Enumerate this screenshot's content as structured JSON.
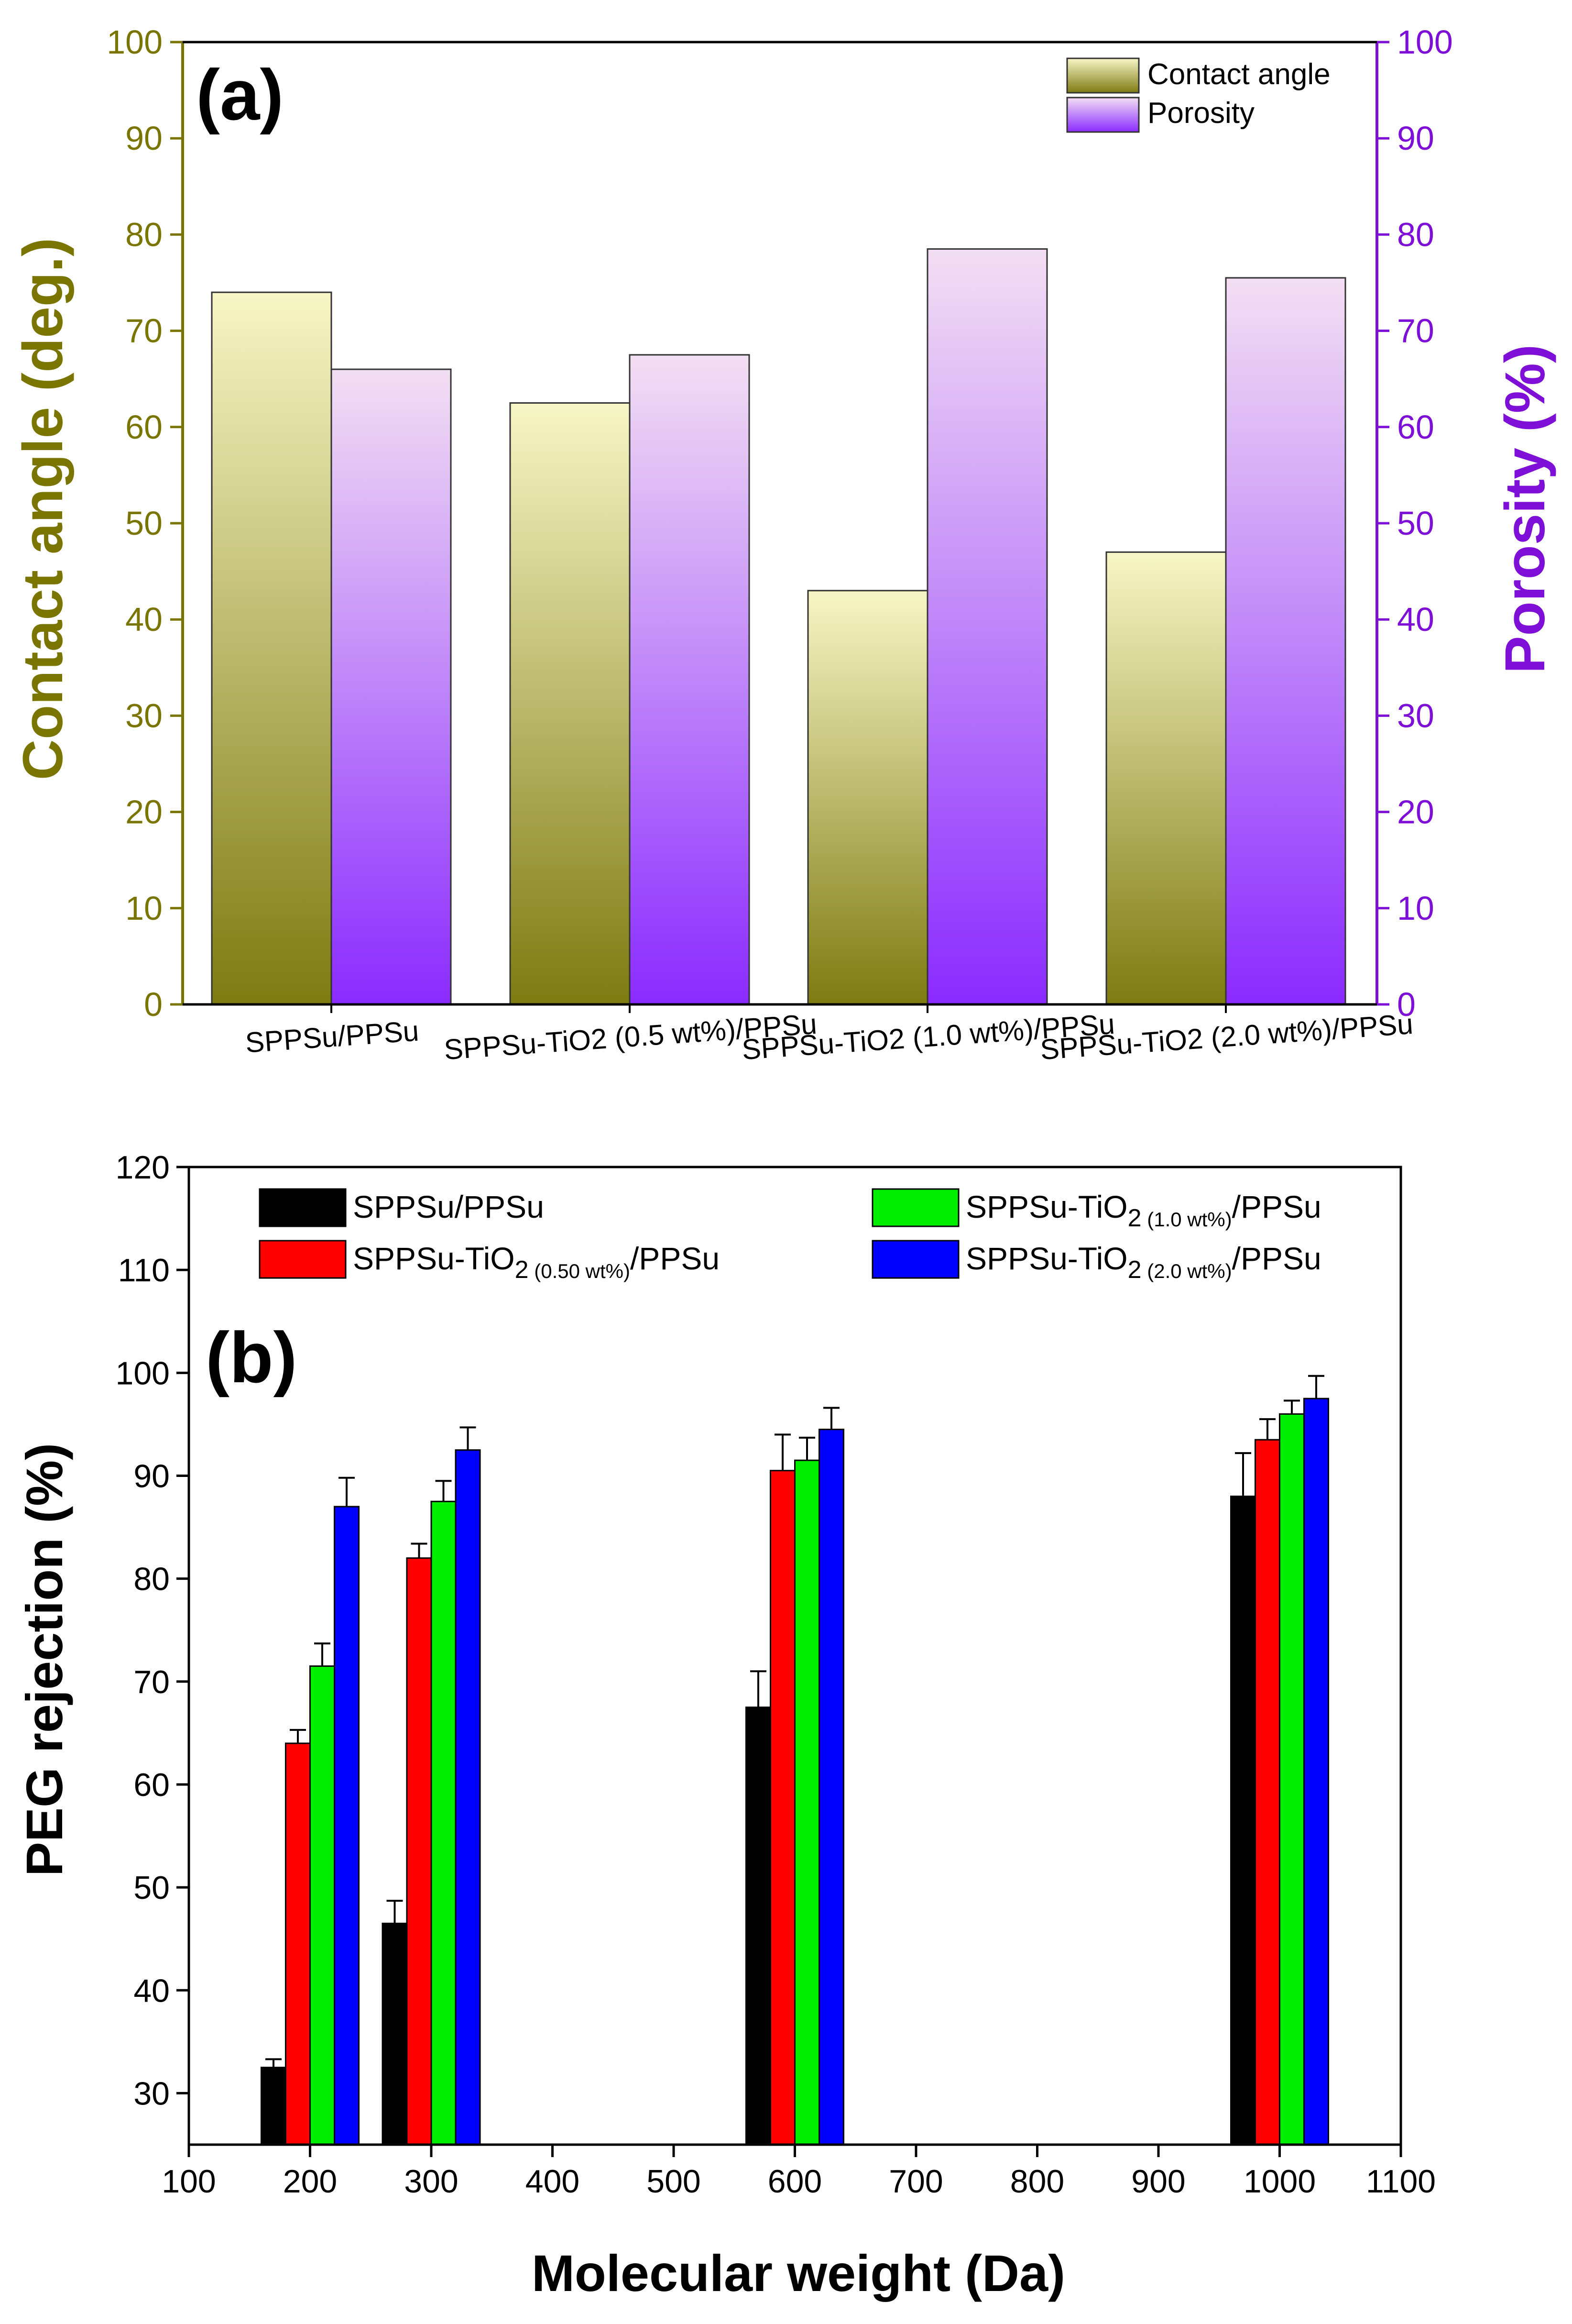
{
  "chart_data": [
    {
      "panel_label": "(a)",
      "type": "bar",
      "categories": [
        "SPPSu/PPSu",
        "SPPSu-TiO2 (0.5 wt%)/PPSu",
        "SPPSu-TiO2 (1.0 wt%)/PPSu",
        "SPPSu-TiO2 (2.0 wt%)/PPSu"
      ],
      "series": [
        {
          "name": "Contact angle",
          "axis": "left",
          "values": [
            74,
            62.5,
            43,
            47
          ],
          "color_top": "#f7f6c6",
          "color_bottom": "#7e7b12"
        },
        {
          "name": "Porosity",
          "axis": "right",
          "values": [
            66,
            67.5,
            78.5,
            75.5
          ],
          "color_top": "#f3dff3",
          "color_bottom": "#8a2bff"
        }
      ],
      "ylabel": "Contact angle (deg.)",
      "ylabel_right": "Porosity (%)",
      "ylim": [
        0,
        100
      ],
      "ylim_right": [
        0,
        100
      ],
      "yticks": [
        "0",
        "10",
        "20",
        "30",
        "40",
        "50",
        "60",
        "70",
        "80",
        "90",
        "100"
      ],
      "yticks_right": [
        "0",
        "10",
        "20",
        "30",
        "40",
        "50",
        "60",
        "70",
        "80",
        "90",
        "100"
      ],
      "left_axis_color": "#7a7400",
      "right_axis_color": "#7e0fd6",
      "legend_position": "top-right"
    },
    {
      "panel_label": "(b)",
      "type": "bar",
      "x": [
        200,
        300,
        600,
        1000
      ],
      "series": [
        {
          "name": "SPPSu/PPSu",
          "name_main": "SPPSu/PPSu",
          "name_sub": "",
          "name_tail": "",
          "color": "#000000",
          "values": [
            32.5,
            46.5,
            67.5,
            88
          ],
          "errors": [
            0.8,
            2.2,
            3.5,
            4.2
          ]
        },
        {
          "name": "SPPSu-TiO2 (0.50 wt%)/PPSu",
          "name_main": "SPPSu-TiO",
          "name_sub": "2 (0.50 wt%)",
          "name_tail": "/PPSu",
          "color": "#ff0000",
          "values": [
            64,
            82,
            90.5,
            93.5
          ],
          "errors": [
            1.3,
            1.4,
            3.5,
            2.0
          ]
        },
        {
          "name": "SPPSu-TiO2 (1.0 wt%)/PPSu",
          "name_main": "SPPSu-TiO",
          "name_sub": "2 (1.0 wt%)",
          "name_tail": "/PPSu",
          "color": "#00ee00",
          "values": [
            71.5,
            87.5,
            91.5,
            96
          ],
          "errors": [
            2.2,
            2.0,
            2.2,
            1.3
          ]
        },
        {
          "name": "SPPSu-TiO2 (2.0 wt%)/PPSu",
          "name_main": "SPPSu-TiO",
          "name_sub": "2 (2.0 wt%)",
          "name_tail": "/PPSu",
          "color": "#0000ff",
          "values": [
            87,
            92.5,
            94.5,
            97.5
          ],
          "errors": [
            2.8,
            2.2,
            2.1,
            2.2
          ]
        }
      ],
      "xlabel": "Molecular weight (Da)",
      "ylabel": "PEG rejection (%)",
      "xlim": [
        100,
        1100
      ],
      "ylim": [
        25,
        120
      ],
      "xticks": [
        "100",
        "200",
        "300",
        "400",
        "500",
        "600",
        "700",
        "800",
        "900",
        "1000",
        "1100"
      ],
      "yticks": [
        "30",
        "40",
        "50",
        "60",
        "70",
        "80",
        "90",
        "100",
        "110",
        "120"
      ],
      "legend_position": "top"
    }
  ]
}
